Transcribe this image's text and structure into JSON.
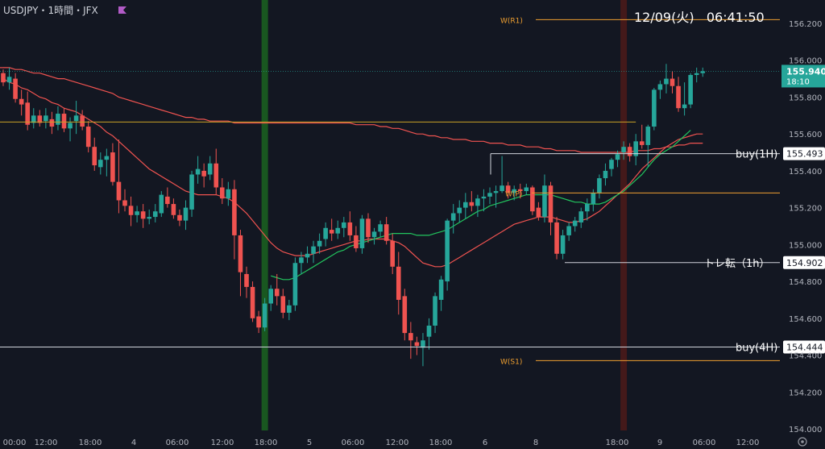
{
  "header": {
    "symbol_label": "USDJPY・1時間・JFX",
    "flag_color": "#b25bc7"
  },
  "clock": "12/09(火)   06:41:50",
  "colors": {
    "bg": "#131722",
    "up": "#26a69a",
    "down": "#ef5350",
    "sma_red": "#ef5350",
    "ma_green": "#22c55e",
    "pivot": "#f0a030",
    "white_line": "#d1d4dc",
    "price_label_bg": "#26a69a",
    "hilite_green": "#1b5e20",
    "hilite_red": "#4a1a1a"
  },
  "chart_data": {
    "type": "candlestick",
    "symbol": "USDJPY",
    "timeframe": "1h",
    "ylim": [
      154.0,
      156.3
    ],
    "y_ticks": [
      "156.200",
      "156.000",
      "155.800",
      "155.600",
      "155.400",
      "155.200",
      "155.000",
      "154.800",
      "154.600",
      "154.400",
      "154.200",
      "154.000"
    ],
    "x_ticks": [
      "00:00",
      "12:00",
      "18:00",
      "4",
      "06:00",
      "12:00",
      "18:00",
      "5",
      "06:00",
      "12:00",
      "18:00",
      "6",
      "8",
      "18:00",
      "9",
      "06:00",
      "12:00"
    ],
    "candles": [
      [
        155.93,
        155.95,
        155.86,
        155.88
      ],
      [
        155.88,
        155.96,
        155.84,
        155.91
      ],
      [
        155.9,
        155.93,
        155.77,
        155.79
      ],
      [
        155.79,
        155.84,
        155.7,
        155.76
      ],
      [
        155.77,
        155.83,
        155.62,
        155.65
      ],
      [
        155.66,
        155.74,
        155.63,
        155.7
      ],
      [
        155.7,
        155.73,
        155.64,
        155.66
      ],
      [
        155.67,
        155.74,
        155.63,
        155.7
      ],
      [
        155.68,
        155.72,
        155.6,
        155.64
      ],
      [
        155.65,
        155.75,
        155.62,
        155.71
      ],
      [
        155.71,
        155.74,
        155.61,
        155.63
      ],
      [
        155.63,
        155.69,
        155.56,
        155.66
      ],
      [
        155.67,
        155.78,
        155.6,
        155.7
      ],
      [
        155.7,
        155.73,
        155.62,
        155.64
      ],
      [
        155.64,
        155.67,
        155.5,
        155.53
      ],
      [
        155.53,
        155.58,
        155.4,
        155.43
      ],
      [
        155.42,
        155.5,
        155.38,
        155.46
      ],
      [
        155.46,
        155.52,
        155.37,
        155.48
      ],
      [
        155.5,
        155.55,
        155.32,
        155.34
      ],
      [
        155.34,
        155.57,
        155.17,
        155.24
      ],
      [
        155.24,
        155.3,
        155.18,
        155.21
      ],
      [
        155.21,
        155.26,
        155.1,
        155.16
      ],
      [
        155.16,
        155.21,
        155.12,
        155.18
      ],
      [
        155.18,
        155.22,
        155.09,
        155.14
      ],
      [
        155.14,
        155.19,
        155.11,
        155.15
      ],
      [
        155.15,
        155.22,
        155.12,
        155.18
      ],
      [
        155.17,
        155.29,
        155.15,
        155.27
      ],
      [
        155.26,
        155.31,
        155.2,
        155.22
      ],
      [
        155.22,
        155.25,
        155.14,
        155.16
      ],
      [
        155.16,
        155.19,
        155.1,
        155.13
      ],
      [
        155.13,
        155.24,
        155.08,
        155.2
      ],
      [
        155.19,
        155.4,
        155.15,
        155.38
      ],
      [
        155.38,
        155.48,
        155.33,
        155.41
      ],
      [
        155.4,
        155.44,
        155.31,
        155.37
      ],
      [
        155.38,
        155.48,
        155.35,
        155.44
      ],
      [
        155.44,
        155.52,
        155.27,
        155.31
      ],
      [
        155.31,
        155.36,
        155.22,
        155.25
      ],
      [
        155.25,
        155.34,
        155.21,
        155.3
      ],
      [
        155.3,
        155.35,
        154.92,
        155.05
      ],
      [
        155.05,
        155.08,
        154.72,
        154.85
      ],
      [
        154.84,
        154.88,
        154.71,
        154.77
      ],
      [
        154.77,
        154.8,
        154.58,
        154.6
      ],
      [
        154.61,
        154.64,
        154.52,
        154.55
      ],
      [
        154.55,
        154.71,
        154.53,
        154.68
      ],
      [
        154.68,
        154.78,
        154.64,
        154.76
      ],
      [
        154.76,
        154.84,
        154.67,
        154.72
      ],
      [
        154.72,
        154.76,
        154.6,
        154.63
      ],
      [
        154.63,
        154.7,
        154.59,
        154.67
      ],
      [
        154.67,
        154.93,
        154.64,
        154.9
      ],
      [
        154.9,
        154.96,
        154.84,
        154.93
      ],
      [
        154.93,
        154.99,
        154.9,
        154.95
      ],
      [
        154.95,
        155.02,
        154.9,
        154.99
      ],
      [
        154.99,
        155.06,
        154.95,
        155.02
      ],
      [
        155.03,
        155.12,
        154.99,
        155.09
      ],
      [
        155.08,
        155.14,
        155.02,
        155.06
      ],
      [
        155.06,
        155.13,
        155.03,
        155.09
      ],
      [
        155.09,
        155.15,
        155.04,
        155.12
      ],
      [
        155.12,
        155.18,
        155.02,
        155.05
      ],
      [
        155.05,
        155.1,
        154.96,
        154.98
      ],
      [
        154.98,
        155.16,
        154.95,
        155.14
      ],
      [
        155.14,
        155.17,
        155.01,
        155.04
      ],
      [
        155.04,
        155.09,
        155.0,
        155.07
      ],
      [
        155.07,
        155.13,
        155.04,
        155.11
      ],
      [
        155.11,
        155.15,
        155.0,
        155.02
      ],
      [
        155.02,
        155.06,
        154.84,
        154.88
      ],
      [
        154.88,
        154.96,
        154.62,
        154.7
      ],
      [
        154.72,
        154.76,
        154.48,
        154.52
      ],
      [
        154.52,
        154.58,
        154.38,
        154.48
      ],
      [
        154.47,
        154.5,
        154.4,
        154.45
      ],
      [
        154.44,
        154.52,
        154.34,
        154.48
      ],
      [
        154.5,
        154.6,
        154.43,
        154.56
      ],
      [
        154.56,
        154.74,
        154.52,
        154.72
      ],
      [
        154.7,
        154.83,
        154.64,
        154.81
      ],
      [
        154.8,
        155.14,
        154.75,
        155.13
      ],
      [
        155.13,
        155.22,
        155.06,
        155.17
      ],
      [
        155.17,
        155.24,
        155.12,
        155.2
      ],
      [
        155.2,
        155.28,
        155.14,
        155.23
      ],
      [
        155.23,
        155.29,
        155.18,
        155.21
      ],
      [
        155.21,
        155.27,
        155.15,
        155.25
      ],
      [
        155.25,
        155.3,
        155.18,
        155.26
      ],
      [
        155.26,
        155.31,
        155.22,
        155.28
      ],
      [
        155.28,
        155.32,
        155.2,
        155.29
      ],
      [
        155.29,
        155.48,
        155.28,
        155.32
      ],
      [
        155.32,
        155.34,
        155.25,
        155.28
      ],
      [
        155.28,
        155.32,
        155.24,
        155.3
      ],
      [
        155.3,
        155.33,
        155.25,
        155.29
      ],
      [
        155.29,
        155.33,
        155.27,
        155.31
      ],
      [
        155.31,
        155.32,
        155.16,
        155.18
      ],
      [
        155.2,
        155.23,
        155.13,
        155.15
      ],
      [
        155.15,
        155.38,
        155.12,
        155.32
      ],
      [
        155.32,
        155.34,
        155.05,
        155.12
      ],
      [
        155.12,
        155.15,
        154.92,
        154.95
      ],
      [
        154.95,
        155.08,
        154.92,
        155.05
      ],
      [
        155.05,
        155.12,
        155.02,
        155.1
      ],
      [
        155.1,
        155.15,
        155.07,
        155.13
      ],
      [
        155.12,
        155.2,
        155.09,
        155.18
      ],
      [
        155.18,
        155.25,
        155.13,
        155.22
      ],
      [
        155.22,
        155.3,
        155.18,
        155.28
      ],
      [
        155.28,
        155.38,
        155.25,
        155.36
      ],
      [
        155.36,
        155.44,
        155.32,
        155.4
      ],
      [
        155.41,
        155.47,
        155.37,
        155.46
      ],
      [
        155.46,
        155.51,
        155.42,
        155.49
      ],
      [
        155.5,
        155.56,
        155.46,
        155.53
      ],
      [
        155.53,
        155.55,
        155.45,
        155.48
      ],
      [
        155.48,
        155.6,
        155.43,
        155.56
      ],
      [
        155.56,
        155.65,
        155.52,
        155.54
      ],
      [
        155.54,
        155.65,
        155.42,
        155.64
      ],
      [
        155.64,
        155.85,
        155.62,
        155.84
      ],
      [
        155.84,
        155.89,
        155.79,
        155.87
      ],
      [
        155.87,
        155.98,
        155.82,
        155.9
      ],
      [
        155.9,
        155.94,
        155.82,
        155.86
      ],
      [
        155.86,
        155.91,
        155.72,
        155.74
      ],
      [
        155.74,
        155.88,
        155.7,
        155.76
      ],
      [
        155.76,
        155.93,
        155.74,
        155.92
      ],
      [
        155.92,
        155.96,
        155.88,
        155.93
      ],
      [
        155.93,
        155.96,
        155.91,
        155.94
      ]
    ],
    "sma_long": [
      155.96,
      155.96,
      155.95,
      155.95,
      155.94,
      155.93,
      155.93,
      155.92,
      155.91,
      155.9,
      155.9,
      155.89,
      155.88,
      155.87,
      155.86,
      155.85,
      155.84,
      155.83,
      155.82,
      155.8,
      155.79,
      155.78,
      155.77,
      155.76,
      155.75,
      155.74,
      155.73,
      155.72,
      155.71,
      155.7,
      155.69,
      155.69,
      155.68,
      155.68,
      155.67,
      155.67,
      155.67,
      155.67,
      155.66,
      155.66,
      155.66,
      155.66,
      155.66,
      155.66,
      155.66,
      155.66,
      155.66,
      155.66,
      155.66,
      155.66,
      155.66,
      155.66,
      155.66,
      155.66,
      155.66,
      155.66,
      155.66,
      155.66,
      155.65,
      155.65,
      155.65,
      155.65,
      155.64,
      155.64,
      155.63,
      155.63,
      155.62,
      155.61,
      155.6,
      155.6,
      155.59,
      155.59,
      155.58,
      155.58,
      155.57,
      155.57,
      155.57,
      155.56,
      155.56,
      155.56,
      155.55,
      155.55,
      155.55,
      155.54,
      155.54,
      155.54,
      155.53,
      155.53,
      155.53,
      155.52,
      155.52,
      155.51,
      155.51,
      155.51,
      155.51,
      155.5,
      155.5,
      155.5,
      155.5,
      155.5,
      155.5,
      155.5,
      155.5,
      155.5,
      155.51,
      155.51,
      155.51,
      155.52,
      155.52,
      155.53,
      155.53,
      155.54,
      155.54,
      155.55,
      155.55,
      155.55
    ],
    "sma_mid": [
      155.9,
      155.88,
      155.87,
      155.85,
      155.84,
      155.82,
      155.8,
      155.79,
      155.77,
      155.76,
      155.74,
      155.73,
      155.72,
      155.7,
      155.68,
      155.66,
      155.64,
      155.61,
      155.59,
      155.56,
      155.53,
      155.5,
      155.47,
      155.44,
      155.41,
      155.39,
      155.37,
      155.35,
      155.33,
      155.31,
      155.29,
      155.28,
      155.27,
      155.27,
      155.27,
      155.27,
      155.26,
      155.25,
      155.23,
      155.2,
      155.17,
      155.13,
      155.09,
      155.05,
      155.01,
      154.98,
      154.96,
      154.95,
      154.94,
      154.94,
      154.94,
      154.95,
      154.96,
      154.97,
      154.98,
      154.99,
      155.0,
      155.01,
      155.02,
      155.02,
      155.03,
      155.03,
      155.03,
      155.03,
      155.02,
      155.01,
      154.99,
      154.96,
      154.93,
      154.9,
      154.89,
      154.88,
      154.88,
      154.89,
      154.91,
      154.93,
      154.95,
      154.97,
      154.99,
      155.01,
      155.03,
      155.05,
      155.07,
      155.09,
      155.11,
      155.12,
      155.13,
      155.14,
      155.15,
      155.15,
      155.15,
      155.14,
      155.13,
      155.12,
      155.12,
      155.13,
      155.14,
      155.16,
      155.18,
      155.21,
      155.24,
      155.27,
      155.3,
      155.33,
      155.37,
      155.41,
      155.44,
      155.47,
      155.5,
      155.53,
      155.55,
      155.57,
      155.58,
      155.59,
      155.6,
      155.6
    ],
    "ma_green_start_index": 44,
    "ma_green": [
      154.83,
      154.82,
      154.81,
      154.81,
      154.82,
      154.84,
      154.86,
      154.88,
      154.9,
      154.92,
      154.94,
      154.96,
      154.97,
      154.99,
      155.0,
      155.01,
      155.02,
      155.03,
      155.04,
      155.05,
      155.06,
      155.06,
      155.06,
      155.06,
      155.05,
      155.05,
      155.05,
      155.06,
      155.07,
      155.08,
      155.1,
      155.12,
      155.14,
      155.16,
      155.18,
      155.19,
      155.21,
      155.22,
      155.23,
      155.24,
      155.25,
      155.26,
      155.27,
      155.27,
      155.27,
      155.27,
      155.27,
      155.26,
      155.25,
      155.24,
      155.23,
      155.23,
      155.22,
      155.22,
      155.22,
      155.23,
      155.25,
      155.27,
      155.29,
      155.32,
      155.35,
      155.38,
      155.42,
      155.46,
      155.49,
      155.51,
      155.53,
      155.56,
      155.59,
      155.62
    ],
    "pivot_levels": [
      {
        "label": "W(R1)",
        "value": 156.22
      },
      {
        "label": "W(P)",
        "value": 155.28
      },
      {
        "label": "W(S1)",
        "value": 154.37
      }
    ],
    "h_lines": [
      {
        "label": "buy(1H)",
        "value": 155.493
      },
      {
        "label": "トレ転（1h）",
        "value": 154.902
      },
      {
        "label": "buy(4H)",
        "value": 154.444
      }
    ],
    "yellow_line_value": 155.665,
    "current_price": "155.940",
    "countdown": "18:10",
    "price_labels": [
      "155.493",
      "154.902",
      "154.444"
    ],
    "highlight_green_index": 43,
    "highlight_red_index": 102
  }
}
